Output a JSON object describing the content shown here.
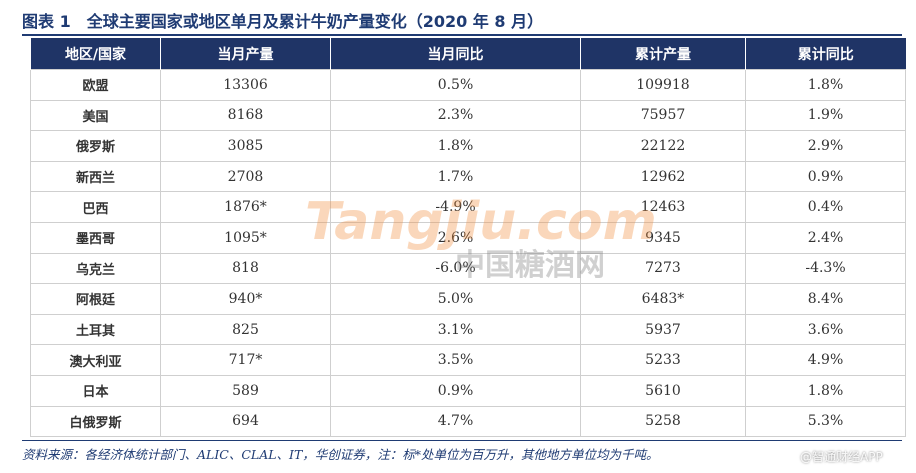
{
  "header": {
    "title": "图表 1　全球主要国家或地区单月及累计牛奶产量变化（2020 年 8 月）"
  },
  "table": {
    "columns": [
      "地区/国家",
      "当月产量",
      "当月同比",
      "累计产量",
      "累计同比"
    ],
    "rows": [
      [
        "欧盟",
        "13306",
        "0.5%",
        "109918",
        "1.8%"
      ],
      [
        "美国",
        "8168",
        "2.3%",
        "75957",
        "1.9%"
      ],
      [
        "俄罗斯",
        "3085",
        "1.8%",
        "22122",
        "2.9%"
      ],
      [
        "新西兰",
        "2708",
        "1.7%",
        "12962",
        "0.9%"
      ],
      [
        "巴西",
        "1876*",
        "-4.9%",
        "12463",
        "0.4%"
      ],
      [
        "墨西哥",
        "1095*",
        "2.6%",
        "9345",
        "2.4%"
      ],
      [
        "乌克兰",
        "818",
        "-6.0%",
        "7273",
        "-4.3%"
      ],
      [
        "阿根廷",
        "940*",
        "5.0%",
        "6483*",
        "8.4%"
      ],
      [
        "土耳其",
        "825",
        "3.1%",
        "5937",
        "3.6%"
      ],
      [
        "澳大利亚",
        "717*",
        "3.5%",
        "5233",
        "4.9%"
      ],
      [
        "日本",
        "589",
        "0.9%",
        "5610",
        "1.8%"
      ],
      [
        "白俄罗斯",
        "694",
        "4.7%",
        "5258",
        "5.3%"
      ]
    ]
  },
  "footer": {
    "source": "资料来源：各经济体统计部门、ALIC、CLAL、IT，华创证券，注：标*处单位为百万升，其他地方单位均为千吨。"
  },
  "watermark": {
    "site": "Tangjiu.com",
    "name": "中国糖酒网",
    "credit": "@智通财经APP"
  }
}
